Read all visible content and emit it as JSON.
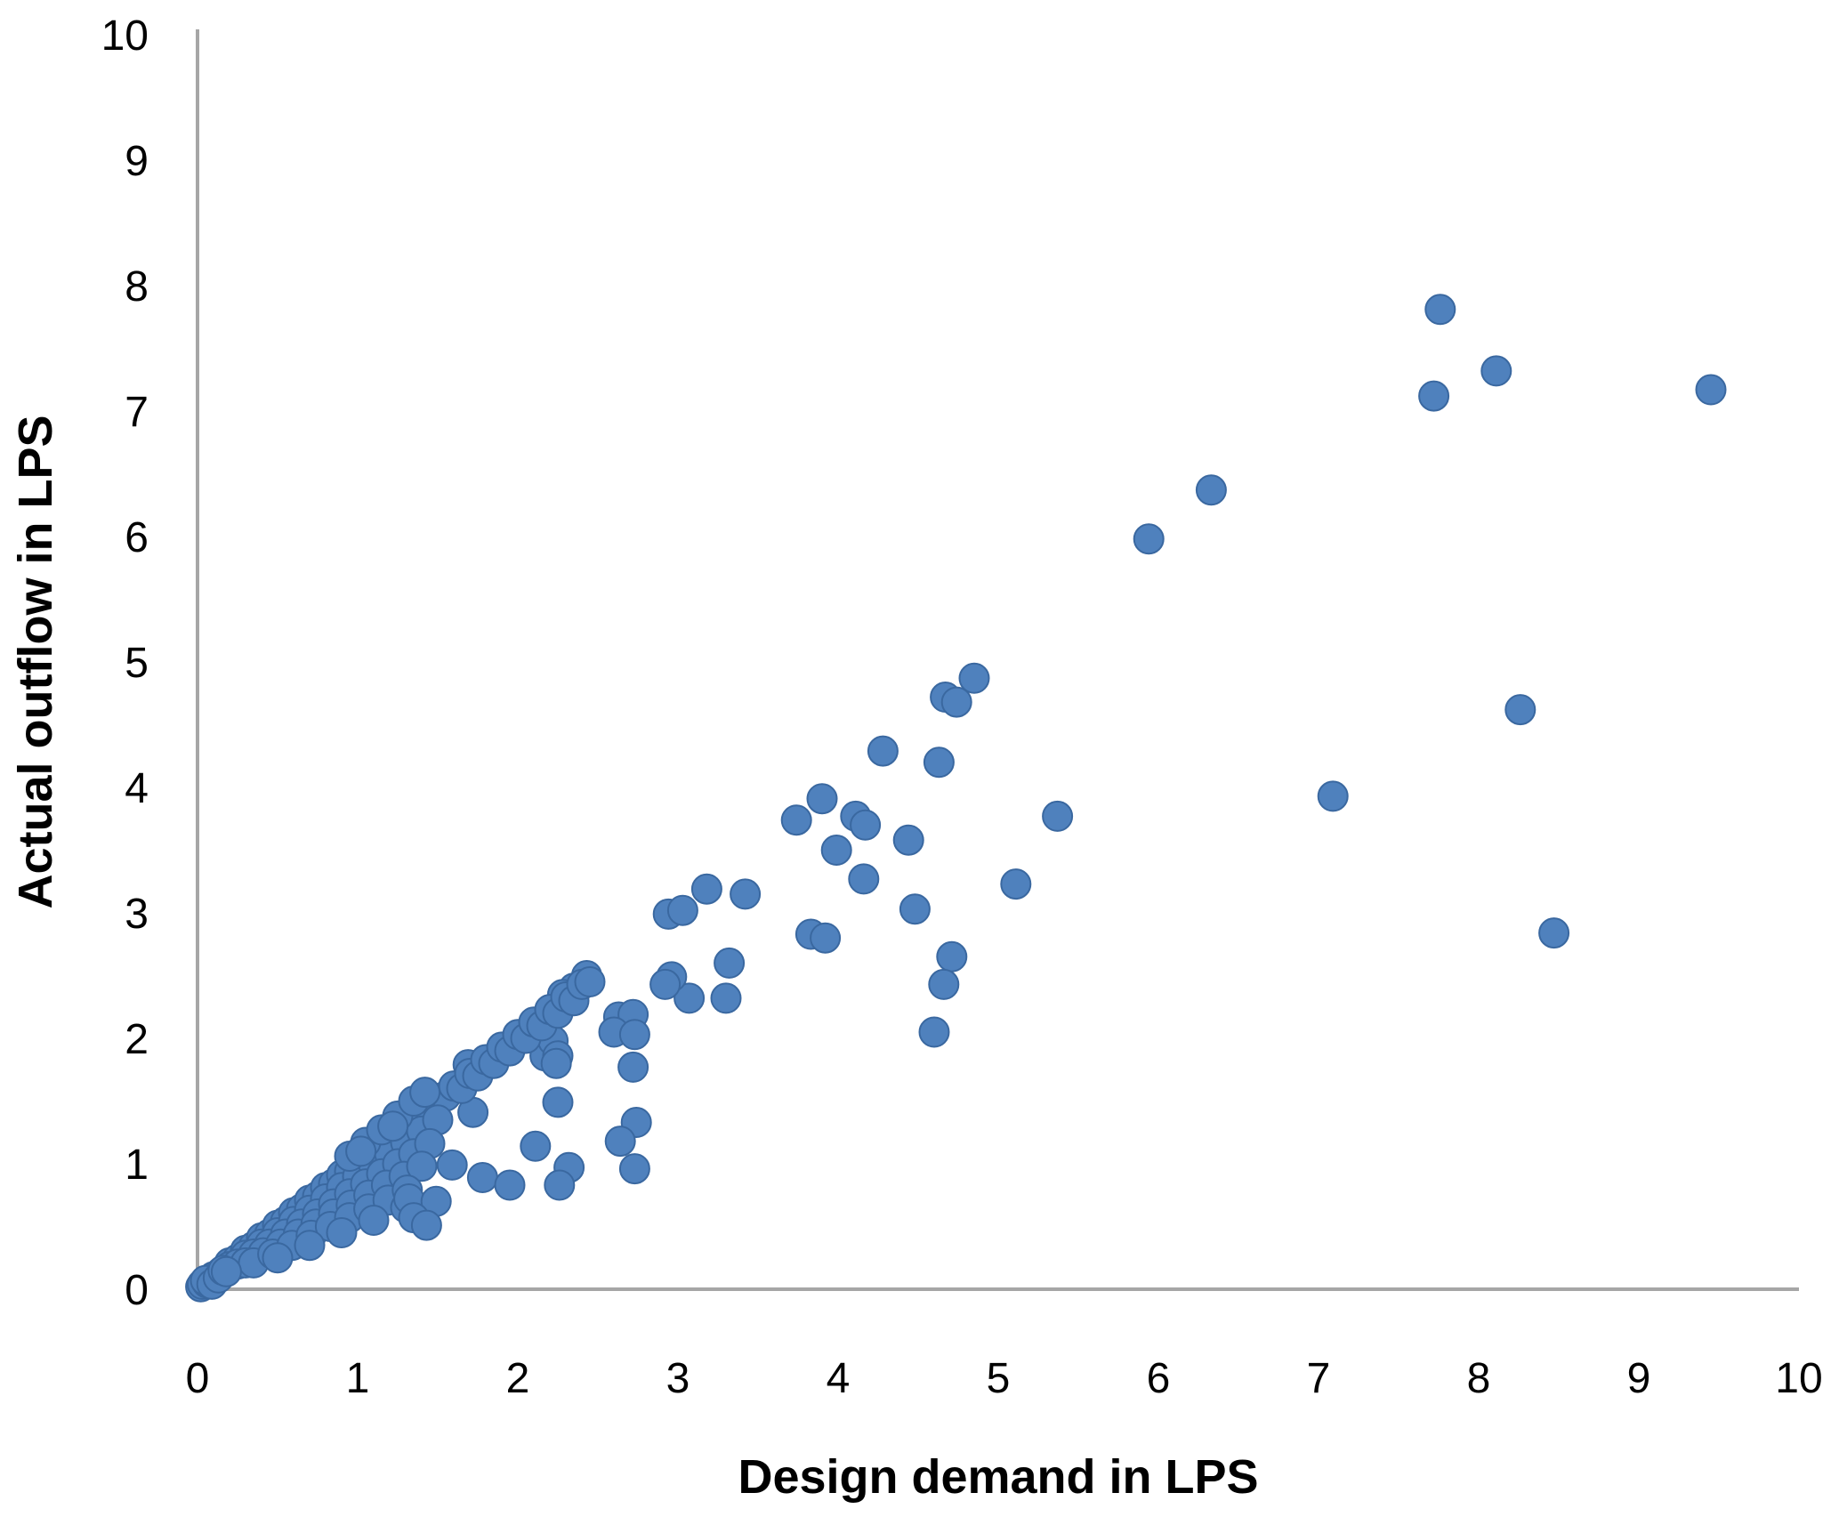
{
  "chart_data": {
    "type": "scatter",
    "title": "",
    "xlabel": "Design demand in LPS",
    "ylabel": "Actual outflow in LPS",
    "xlim": [
      0,
      10
    ],
    "ylim": [
      0,
      10
    ],
    "x_ticks": [
      0,
      1,
      2,
      3,
      4,
      5,
      6,
      7,
      8,
      9,
      10
    ],
    "y_ticks": [
      0,
      1,
      2,
      3,
      4,
      5,
      6,
      7,
      8,
      9,
      10
    ],
    "grid": false,
    "legend": "none",
    "marker": {
      "shape": "circle",
      "fill": "#4f81bd",
      "stroke": "#3a68a0",
      "radius_px": 16.5
    },
    "axis_color": "#a6a6a6",
    "axis_stroke_px": 4,
    "points": [
      [
        9.45,
        7.17
      ],
      [
        7.76,
        7.81
      ],
      [
        8.11,
        7.32
      ],
      [
        7.72,
        7.12
      ],
      [
        6.33,
        6.37
      ],
      [
        5.94,
        5.98
      ],
      [
        8.26,
        4.62
      ],
      [
        8.47,
        2.84
      ],
      [
        7.09,
        3.93
      ],
      [
        4.85,
        4.87
      ],
      [
        4.67,
        4.72
      ],
      [
        4.74,
        4.68
      ],
      [
        4.28,
        4.29
      ],
      [
        4.63,
        4.2
      ],
      [
        5.37,
        3.77
      ],
      [
        5.11,
        3.23
      ],
      [
        4.48,
        3.03
      ],
      [
        4.71,
        2.65
      ],
      [
        4.66,
        2.43
      ],
      [
        4.6,
        2.05
      ],
      [
        3.9,
        3.91
      ],
      [
        3.74,
        3.74
      ],
      [
        4.11,
        3.77
      ],
      [
        4.17,
        3.7
      ],
      [
        4.44,
        3.58
      ],
      [
        3.99,
        3.5
      ],
      [
        4.16,
        3.27
      ],
      [
        3.42,
        3.15
      ],
      [
        3.83,
        2.83
      ],
      [
        3.92,
        2.8
      ],
      [
        3.32,
        2.6
      ],
      [
        3.3,
        2.32
      ],
      [
        3.07,
        2.32
      ],
      [
        3.18,
        3.19
      ],
      [
        2.94,
        2.99
      ],
      [
        3.03,
        3.02
      ],
      [
        2.96,
        2.49
      ],
      [
        2.92,
        2.43
      ],
      [
        2.43,
        2.5
      ],
      [
        2.35,
        2.4
      ],
      [
        2.28,
        2.35
      ],
      [
        2.63,
        2.17
      ],
      [
        2.72,
        2.19
      ],
      [
        2.6,
        2.05
      ],
      [
        2.73,
        2.03
      ],
      [
        2.72,
        1.77
      ],
      [
        2.74,
        1.33
      ],
      [
        2.64,
        1.18
      ],
      [
        2.73,
        0.96
      ],
      [
        2.25,
        1.49
      ],
      [
        2.11,
        1.14
      ],
      [
        2.32,
        0.97
      ],
      [
        2.26,
        0.83
      ],
      [
        1.72,
        1.41
      ],
      [
        1.59,
        0.99
      ],
      [
        1.78,
        0.89
      ],
      [
        1.95,
        0.83
      ],
      [
        2.17,
        2.01
      ],
      [
        2.17,
        1.86
      ],
      [
        2.22,
        1.98
      ],
      [
        2.25,
        1.86
      ],
      [
        2.24,
        1.8
      ],
      [
        1.69,
        1.79
      ],
      [
        0.05,
        0.05
      ],
      [
        0.1,
        0.1
      ],
      [
        0.15,
        0.14
      ],
      [
        0.2,
        0.21
      ],
      [
        0.25,
        0.24
      ],
      [
        0.3,
        0.31
      ],
      [
        0.35,
        0.34
      ],
      [
        0.4,
        0.41
      ],
      [
        0.45,
        0.44
      ],
      [
        0.5,
        0.51
      ],
      [
        0.55,
        0.54
      ],
      [
        0.6,
        0.61
      ],
      [
        0.65,
        0.64
      ],
      [
        0.7,
        0.71
      ],
      [
        0.75,
        0.74
      ],
      [
        0.8,
        0.81
      ],
      [
        0.85,
        0.84
      ],
      [
        0.9,
        0.91
      ],
      [
        0.95,
        0.94
      ],
      [
        1.0,
        1.01
      ],
      [
        1.05,
        1.04
      ],
      [
        1.1,
        1.11
      ],
      [
        1.15,
        1.14
      ],
      [
        1.2,
        1.21
      ],
      [
        1.25,
        1.24
      ],
      [
        1.3,
        1.31
      ],
      [
        1.35,
        1.34
      ],
      [
        1.4,
        1.41
      ],
      [
        1.45,
        1.44
      ],
      [
        1.5,
        1.51
      ],
      [
        1.55,
        1.54
      ],
      [
        1.6,
        1.62
      ],
      [
        1.65,
        1.6
      ],
      [
        1.7,
        1.72
      ],
      [
        1.75,
        1.7
      ],
      [
        1.8,
        1.83
      ],
      [
        1.85,
        1.8
      ],
      [
        1.9,
        1.93
      ],
      [
        1.95,
        1.9
      ],
      [
        2.0,
        2.03
      ],
      [
        2.05,
        2.0
      ],
      [
        2.1,
        2.13
      ],
      [
        2.15,
        2.1
      ],
      [
        2.2,
        2.23
      ],
      [
        2.25,
        2.2
      ],
      [
        2.3,
        2.33
      ],
      [
        2.35,
        2.3
      ],
      [
        2.4,
        2.43
      ],
      [
        2.45,
        2.45
      ],
      [
        0.2,
        0.18
      ],
      [
        0.3,
        0.27
      ],
      [
        0.4,
        0.36
      ],
      [
        0.5,
        0.45
      ],
      [
        0.6,
        0.54
      ],
      [
        0.7,
        0.63
      ],
      [
        0.8,
        0.72
      ],
      [
        0.9,
        0.81
      ],
      [
        1.0,
        0.9
      ],
      [
        1.1,
        0.99
      ],
      [
        1.2,
        1.08
      ],
      [
        1.3,
        1.17
      ],
      [
        1.4,
        1.26
      ],
      [
        1.5,
        1.35
      ],
      [
        0.25,
        0.2
      ],
      [
        0.35,
        0.28
      ],
      [
        0.45,
        0.36
      ],
      [
        0.55,
        0.44
      ],
      [
        0.65,
        0.52
      ],
      [
        0.75,
        0.6
      ],
      [
        0.85,
        0.68
      ],
      [
        0.95,
        0.76
      ],
      [
        1.05,
        0.84
      ],
      [
        1.15,
        0.92
      ],
      [
        1.25,
        1.0
      ],
      [
        1.35,
        1.08
      ],
      [
        1.45,
        1.16
      ],
      [
        0.3,
        0.21
      ],
      [
        0.41,
        0.29
      ],
      [
        0.52,
        0.36
      ],
      [
        0.63,
        0.44
      ],
      [
        0.74,
        0.52
      ],
      [
        0.85,
        0.6
      ],
      [
        0.96,
        0.67
      ],
      [
        1.07,
        0.75
      ],
      [
        1.18,
        0.83
      ],
      [
        1.29,
        0.9
      ],
      [
        1.4,
        0.98
      ],
      [
        0.35,
        0.21
      ],
      [
        0.47,
        0.28
      ],
      [
        0.59,
        0.35
      ],
      [
        0.71,
        0.43
      ],
      [
        0.83,
        0.5
      ],
      [
        0.95,
        0.57
      ],
      [
        1.07,
        0.64
      ],
      [
        1.19,
        0.71
      ],
      [
        1.31,
        0.79
      ],
      [
        0.5,
        0.25
      ],
      [
        0.7,
        0.35
      ],
      [
        0.9,
        0.45
      ],
      [
        1.1,
        0.55
      ],
      [
        1.3,
        0.65
      ],
      [
        1.32,
        0.72
      ],
      [
        1.49,
        0.7
      ],
      [
        1.35,
        0.57
      ],
      [
        1.43,
        0.51
      ],
      [
        0.95,
        1.06
      ],
      [
        1.05,
        1.17
      ],
      [
        1.15,
        1.27
      ],
      [
        1.25,
        1.38
      ],
      [
        1.35,
        1.5
      ],
      [
        1.42,
        1.57
      ],
      [
        1.22,
        1.3
      ],
      [
        1.02,
        1.1
      ],
      [
        0.02,
        0.02
      ],
      [
        0.03,
        0.04
      ],
      [
        0.06,
        0.05
      ],
      [
        0.08,
        0.08
      ],
      [
        0.1,
        0.07
      ],
      [
        0.12,
        0.11
      ],
      [
        0.15,
        0.13
      ],
      [
        0.05,
        0.07
      ],
      [
        0.09,
        0.04
      ],
      [
        0.13,
        0.09
      ],
      [
        0.16,
        0.15
      ],
      [
        0.18,
        0.14
      ]
    ]
  }
}
